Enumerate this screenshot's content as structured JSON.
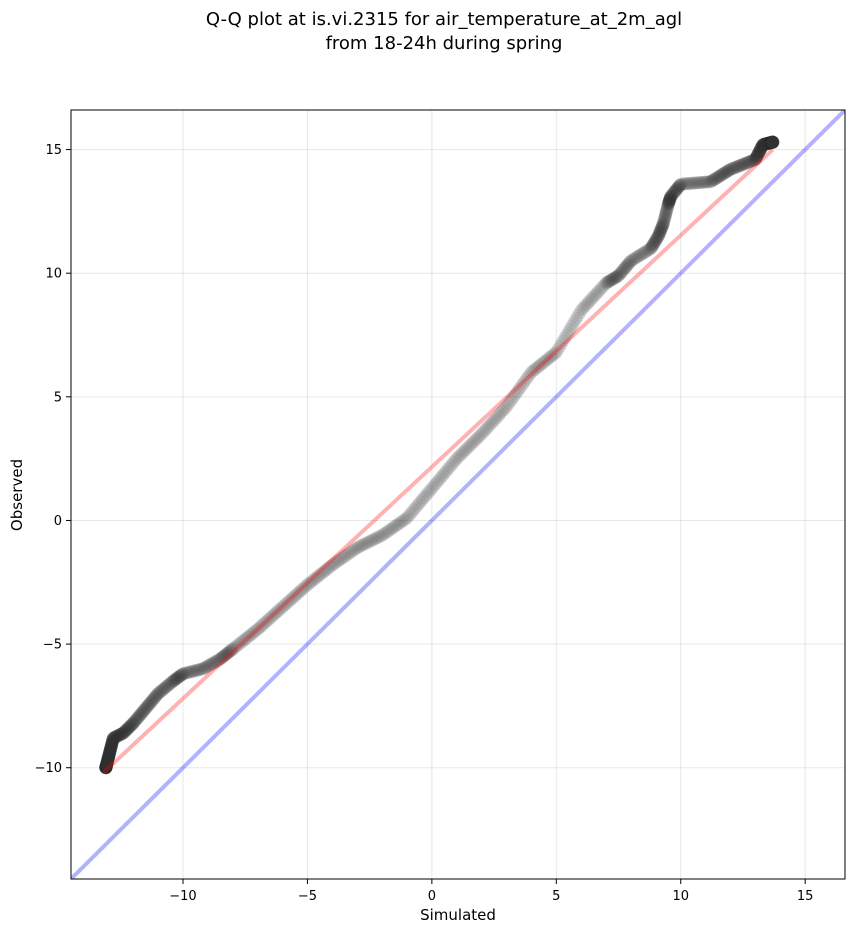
{
  "chart_data": {
    "type": "scatter",
    "title": [
      "Q-Q plot at is.vi.2315 for air_temperature_at_2m_agl",
      "from 18-24h during spring"
    ],
    "xlabel": "Simulated",
    "ylabel": "Observed",
    "xlim": [
      -14.5,
      16.6
    ],
    "ylim": [
      -14.5,
      16.6
    ],
    "xticks": [
      -10,
      -5,
      0,
      5,
      10,
      15
    ],
    "yticks": [
      -10,
      -5,
      0,
      5,
      10,
      15
    ],
    "xtick_labels": [
      "−10",
      "−5",
      "0",
      "5",
      "10",
      "15"
    ],
    "ytick_labels": [
      "−10",
      "−5",
      "0",
      "5",
      "10",
      "15"
    ],
    "grid": true,
    "quantile_anchors": [
      [
        -13.1,
        -10.0
      ],
      [
        -13.0,
        -9.6
      ],
      [
        -12.9,
        -9.2
      ],
      [
        -12.8,
        -8.8
      ],
      [
        -12.4,
        -8.6
      ],
      [
        -12.0,
        -8.2
      ],
      [
        -11.5,
        -7.6
      ],
      [
        -11.0,
        -7.0
      ],
      [
        -10.4,
        -6.5
      ],
      [
        -10.0,
        -6.2
      ],
      [
        -9.2,
        -6.0
      ],
      [
        -8.5,
        -5.6
      ],
      [
        -8.0,
        -5.2
      ],
      [
        -7.0,
        -4.4
      ],
      [
        -6.0,
        -3.5
      ],
      [
        -5.0,
        -2.6
      ],
      [
        -4.0,
        -1.8
      ],
      [
        -3.0,
        -1.1
      ],
      [
        -2.0,
        -0.6
      ],
      [
        -1.0,
        0.1
      ],
      [
        0.0,
        1.3
      ],
      [
        1.0,
        2.5
      ],
      [
        2.0,
        3.5
      ],
      [
        3.0,
        4.6
      ],
      [
        4.0,
        6.0
      ],
      [
        5.0,
        6.8
      ],
      [
        6.0,
        8.5
      ],
      [
        7.0,
        9.6
      ],
      [
        7.5,
        9.9
      ],
      [
        8.0,
        10.5
      ],
      [
        8.8,
        11.0
      ],
      [
        9.1,
        11.5
      ],
      [
        9.3,
        12.0
      ],
      [
        9.5,
        12.8
      ],
      [
        9.6,
        13.1
      ],
      [
        10.0,
        13.6
      ],
      [
        11.2,
        13.7
      ],
      [
        12.0,
        14.2
      ],
      [
        13.0,
        14.6
      ],
      [
        13.3,
        15.2
      ],
      [
        13.7,
        15.3
      ]
    ],
    "point_count": 900,
    "fit_line": {
      "x": [
        -13.2,
        13.7
      ],
      "y": [
        -10.2,
        15.0
      ],
      "color": "#ff0000",
      "alpha": 0.3
    },
    "identity_line": {
      "color": "#0000ff",
      "alpha": 0.3
    },
    "point_color": "#333333",
    "point_alpha": 0.12
  }
}
